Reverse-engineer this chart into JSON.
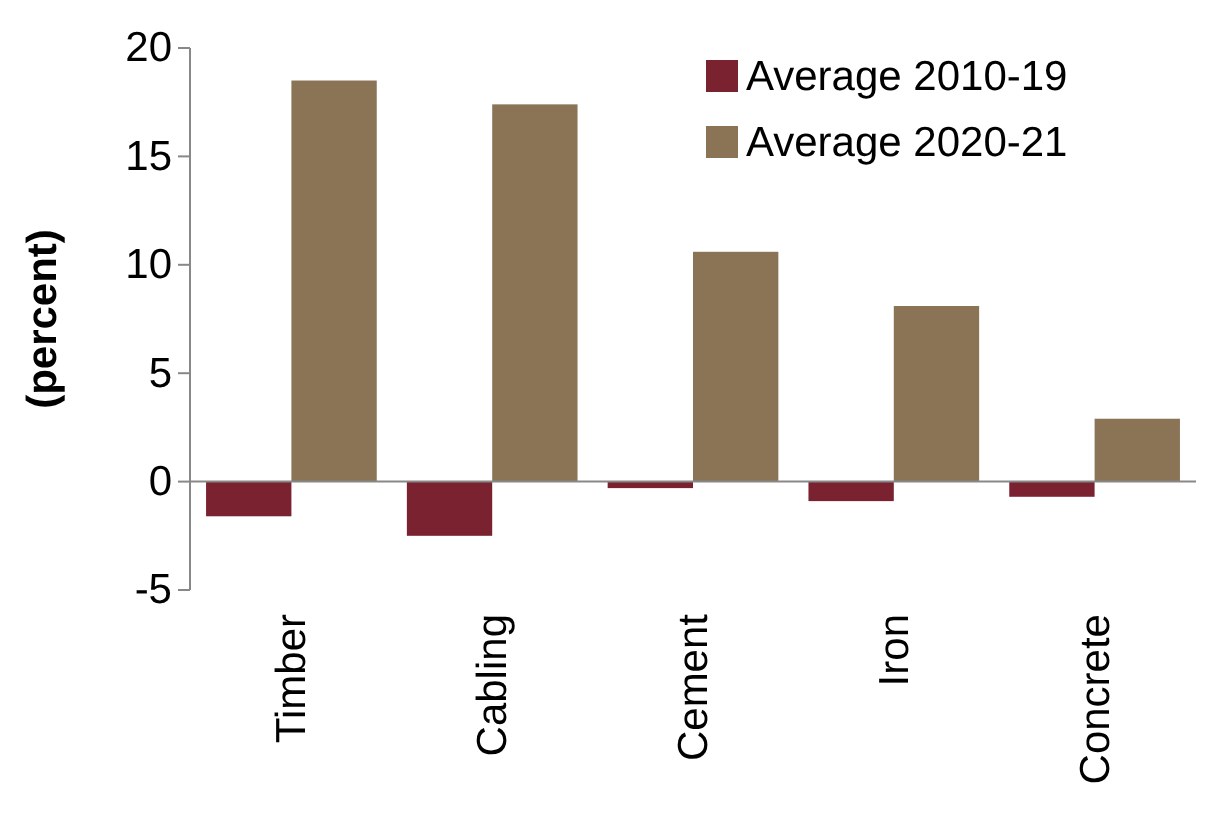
{
  "chart_data": {
    "type": "bar",
    "ylabel": "(percent)",
    "categories": [
      "Timber",
      "Cabling",
      "Cement",
      "Iron",
      "Concrete"
    ],
    "series": [
      {
        "name": "Average 2010-19",
        "color": "#7b2230",
        "values": [
          -1.6,
          -2.5,
          -0.3,
          -0.9,
          -0.7
        ]
      },
      {
        "name": "Average 2020-21",
        "color": "#8b7355",
        "values": [
          18.5,
          17.4,
          10.6,
          8.1,
          2.9
        ]
      }
    ],
    "ylim": [
      -5,
      20
    ],
    "yticks": [
      -5,
      0,
      5,
      10,
      15,
      20
    ],
    "legend": "top right"
  }
}
